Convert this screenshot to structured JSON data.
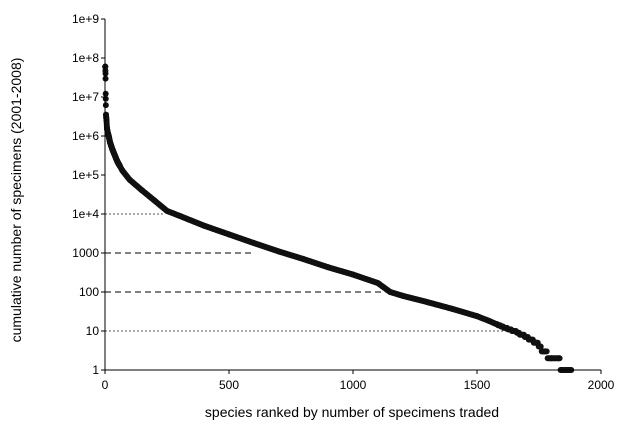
{
  "chart_data": {
    "type": "scatter",
    "title": "",
    "xlabel": "species ranked by number of specimens traded",
    "ylabel": "cumulative number of specimens (2001-2008)",
    "xlim": [
      0,
      2000
    ],
    "ylim": [
      1,
      1000000000
    ],
    "y_scale": "log",
    "x_ticks": [
      "0",
      "500",
      "1000",
      "1500",
      "2000"
    ],
    "y_ticks": [
      "1",
      "10",
      "100",
      "1000",
      "1e+4",
      "1e+5",
      "1e+6",
      "1e+7",
      "1e+8",
      "1e+9"
    ],
    "grid": false,
    "legend": "none",
    "marker_color": "#111111",
    "reference_lines": [
      {
        "y": 10000,
        "x_end": 240,
        "style": "dotted"
      },
      {
        "y": 1000,
        "x_end": 600,
        "style": "dashed"
      },
      {
        "y": 100,
        "x_end": 1150,
        "style": "dashed"
      },
      {
        "y": 10,
        "x_end": 1620,
        "style": "dotted"
      }
    ],
    "series": [
      {
        "curve_points": [
          [
            1,
            60000000
          ],
          [
            2,
            40000000
          ],
          [
            3,
            9000000
          ],
          [
            4,
            3500000
          ],
          [
            6,
            2500000
          ],
          [
            8,
            1600000
          ],
          [
            10,
            1300000
          ],
          [
            15,
            1000000
          ],
          [
            20,
            700000
          ],
          [
            30,
            450000
          ],
          [
            50,
            220000
          ],
          [
            70,
            130000
          ],
          [
            100,
            75000
          ],
          [
            150,
            40000
          ],
          [
            200,
            22000
          ],
          [
            250,
            12000
          ],
          [
            300,
            9000
          ],
          [
            400,
            5000
          ],
          [
            500,
            3000
          ],
          [
            600,
            1800
          ],
          [
            700,
            1100
          ],
          [
            800,
            700
          ],
          [
            900,
            430
          ],
          [
            1000,
            280
          ],
          [
            1100,
            170
          ],
          [
            1150,
            100
          ],
          [
            1200,
            80
          ],
          [
            1300,
            55
          ],
          [
            1400,
            37
          ],
          [
            1500,
            24
          ],
          [
            1550,
            18
          ],
          [
            1600,
            13
          ],
          [
            1650,
            10
          ],
          [
            1700,
            7
          ],
          [
            1740,
            5
          ],
          [
            1770,
            3
          ],
          [
            1800,
            2
          ],
          [
            1830,
            2
          ],
          [
            1840,
            1
          ],
          [
            1880,
            1
          ]
        ]
      }
    ]
  }
}
